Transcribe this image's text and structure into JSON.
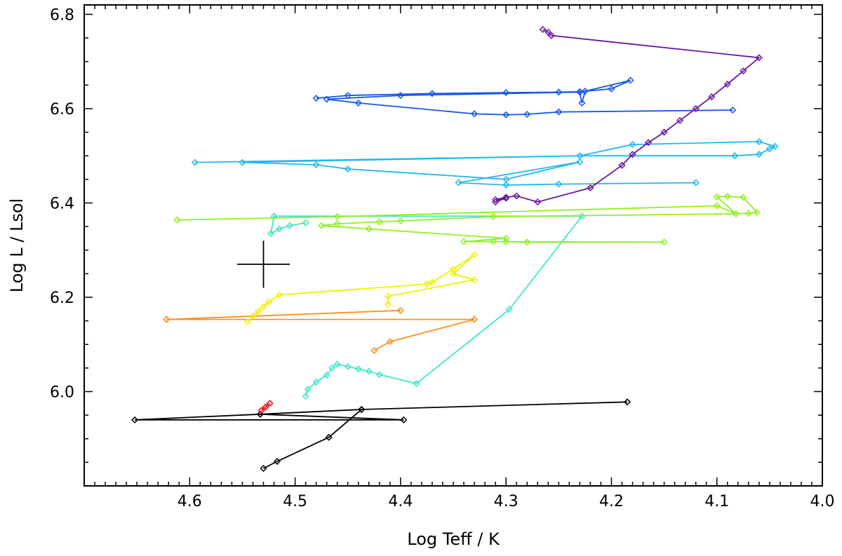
{
  "chart_data": {
    "type": "line",
    "title": "",
    "xlabel": "Log Teff / K",
    "ylabel": "Log L / Lsol",
    "xlim": [
      4.7,
      4.0
    ],
    "ylim": [
      5.8,
      6.82
    ],
    "x_ticks": [
      "4.6",
      "4.5",
      "4.4",
      "4.3",
      "4.2",
      "4.1",
      "4.0"
    ],
    "y_ticks": [
      "6.0",
      "6.2",
      "6.4",
      "6.6",
      "6.8"
    ],
    "grid": false,
    "legend": "none",
    "marker": "diamond",
    "series": [
      {
        "color": "#000000",
        "points": [
          [
            4.53,
            5.837
          ],
          [
            4.517,
            5.852
          ],
          [
            4.468,
            5.903
          ],
          [
            4.437,
            5.962
          ],
          [
            4.533,
            5.952
          ],
          [
            4.652,
            5.94
          ],
          [
            4.397,
            5.94
          ],
          [
            4.533,
            5.952
          ],
          [
            4.437,
            5.962
          ],
          [
            4.185,
            5.978
          ]
        ]
      },
      {
        "color": "#ff0000",
        "points": [
          [
            4.532,
            5.96
          ],
          [
            4.528,
            5.967
          ],
          [
            4.524,
            5.975
          ]
        ]
      },
      {
        "color": "#40e8c8",
        "points": [
          [
            4.49,
            5.99
          ],
          [
            4.488,
            6.005
          ],
          [
            4.48,
            6.02
          ],
          [
            4.47,
            6.035
          ],
          [
            4.465,
            6.05
          ],
          [
            4.46,
            6.058
          ],
          [
            4.45,
            6.053
          ],
          [
            4.44,
            6.048
          ],
          [
            4.43,
            6.043
          ],
          [
            4.42,
            6.036
          ],
          [
            4.385,
            6.017
          ],
          [
            4.297,
            6.174
          ],
          [
            4.228,
            6.372
          ],
          [
            4.52,
            6.372
          ],
          [
            4.523,
            6.335
          ],
          [
            4.515,
            6.345
          ],
          [
            4.505,
            6.352
          ],
          [
            4.49,
            6.358
          ]
        ]
      },
      {
        "color": "#ff9020",
        "points": [
          [
            4.4,
            6.172
          ],
          [
            4.622,
            6.153
          ],
          [
            4.33,
            6.153
          ],
          [
            4.622,
            6.153
          ],
          [
            4.33,
            6.153
          ],
          [
            4.41,
            6.106
          ],
          [
            4.425,
            6.087
          ]
        ]
      },
      {
        "color": "#f0f000",
        "points": [
          [
            4.545,
            6.148
          ],
          [
            4.54,
            6.16
          ],
          [
            4.535,
            6.17
          ],
          [
            4.53,
            6.18
          ],
          [
            4.525,
            6.19
          ],
          [
            4.515,
            6.205
          ],
          [
            4.375,
            6.228
          ],
          [
            4.37,
            6.232
          ],
          [
            4.35,
            6.26
          ],
          [
            4.33,
            6.29
          ],
          [
            4.35,
            6.25
          ],
          [
            4.33,
            6.237
          ],
          [
            4.412,
            6.202
          ],
          [
            4.412,
            6.185
          ]
        ]
      },
      {
        "color": "#90f020",
        "points": [
          [
            4.612,
            6.364
          ],
          [
            4.46,
            6.371
          ],
          [
            4.1,
            6.394
          ],
          [
            4.082,
            6.377
          ],
          [
            4.07,
            6.378
          ],
          [
            4.062,
            6.38
          ],
          [
            4.075,
            6.412
          ],
          [
            4.09,
            6.414
          ],
          [
            4.1,
            6.413
          ],
          [
            4.082,
            6.377
          ],
          [
            4.312,
            6.371
          ],
          [
            4.4,
            6.362
          ],
          [
            4.42,
            6.36
          ],
          [
            4.46,
            6.356
          ],
          [
            4.475,
            6.352
          ],
          [
            4.43,
            6.345
          ],
          [
            4.3,
            6.325
          ],
          [
            4.34,
            6.318
          ],
          [
            4.3,
            6.318
          ],
          [
            4.28,
            6.317
          ],
          [
            4.15,
            6.317
          ],
          [
            4.3,
            6.318
          ],
          [
            4.312,
            6.318
          ]
        ]
      },
      {
        "color": "#20b8f0",
        "points": [
          [
            4.595,
            6.486
          ],
          [
            4.23,
            6.5
          ],
          [
            4.083,
            6.5
          ],
          [
            4.06,
            6.503
          ],
          [
            4.05,
            6.515
          ],
          [
            4.045,
            6.52
          ],
          [
            4.06,
            6.53
          ],
          [
            4.18,
            6.524
          ],
          [
            4.23,
            6.5
          ],
          [
            4.55,
            6.486
          ],
          [
            4.48,
            6.481
          ],
          [
            4.45,
            6.472
          ],
          [
            4.3,
            6.45
          ],
          [
            4.23,
            6.487
          ],
          [
            4.345,
            6.443
          ],
          [
            4.3,
            6.438
          ],
          [
            4.25,
            6.44
          ],
          [
            4.12,
            6.443
          ]
        ]
      },
      {
        "color": "#1858e8",
        "points": [
          [
            4.48,
            6.622
          ],
          [
            4.45,
            6.628
          ],
          [
            4.37,
            6.632
          ],
          [
            4.3,
            6.634
          ],
          [
            4.25,
            6.635
          ],
          [
            4.23,
            6.636
          ],
          [
            4.2,
            6.642
          ],
          [
            4.182,
            6.66
          ],
          [
            4.225,
            6.637
          ],
          [
            4.228,
            6.612
          ],
          [
            4.23,
            6.635
          ],
          [
            4.4,
            6.628
          ],
          [
            4.47,
            6.62
          ],
          [
            4.44,
            6.612
          ],
          [
            4.33,
            6.589
          ],
          [
            4.3,
            6.587
          ],
          [
            4.28,
            6.588
          ],
          [
            4.25,
            6.593
          ],
          [
            4.085,
            6.597
          ]
        ]
      },
      {
        "color": "#6818a0",
        "points": [
          [
            4.265,
            6.768
          ],
          [
            4.26,
            6.762
          ],
          [
            4.257,
            6.755
          ],
          [
            4.06,
            6.708
          ],
          [
            4.075,
            6.68
          ],
          [
            4.09,
            6.652
          ],
          [
            4.105,
            6.625
          ],
          [
            4.12,
            6.6
          ],
          [
            4.135,
            6.575
          ],
          [
            4.15,
            6.55
          ],
          [
            4.165,
            6.528
          ],
          [
            4.18,
            6.503
          ],
          [
            4.19,
            6.48
          ],
          [
            4.22,
            6.432
          ],
          [
            4.27,
            6.402
          ],
          [
            4.29,
            6.415
          ],
          [
            4.3,
            6.412
          ],
          [
            4.31,
            6.407
          ],
          [
            4.3,
            6.41
          ],
          [
            4.31,
            6.402
          ]
        ]
      }
    ],
    "annotations": [
      {
        "type": "cross",
        "x": 4.53,
        "y": 6.27,
        "xerr": 0.025,
        "yerr": 0.05
      }
    ]
  }
}
